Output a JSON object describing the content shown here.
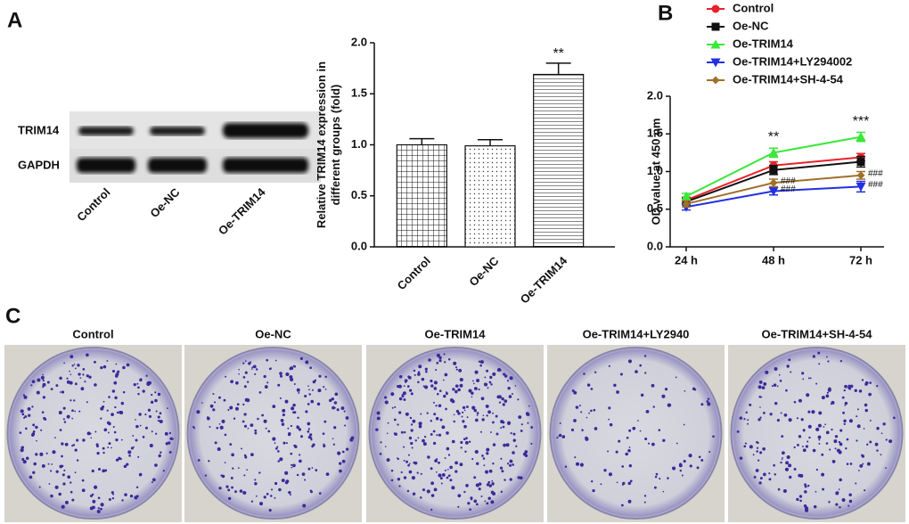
{
  "panel_labels": [
    "A",
    "B",
    "C"
  ],
  "blot": {
    "rows": [
      "TRIM14",
      "GAPDH"
    ],
    "lanes": [
      "Control",
      "Oe-NC",
      "Oe-TRIM14"
    ]
  },
  "colony": {
    "titles": [
      "Control",
      "Oe-NC",
      "Oe-TRIM14",
      "Oe-TRIM14+LY2940",
      "Oe-TRIM14+SH-4-54"
    ]
  },
  "chart_data": [
    {
      "type": "bar",
      "y_label_lines": [
        "Relative TRIM14 expression in",
        "different groups (fold)"
      ],
      "categories": [
        "Control",
        "Oe-NC",
        "Oe-TRIM14"
      ],
      "values": [
        1.0,
        0.99,
        1.69
      ],
      "errors": [
        0.06,
        0.06,
        0.11
      ],
      "patterns": [
        "grid",
        "dots",
        "hlines"
      ],
      "ylim": [
        0,
        2.0
      ],
      "yticks": [
        {
          "value": 0,
          "label": "0.0"
        },
        {
          "value": 0.5,
          "label": "0.5"
        },
        {
          "value": 1,
          "label": "1.0"
        },
        {
          "value": 1.5,
          "label": "1.5"
        },
        {
          "value": 2,
          "label": "2.0"
        }
      ],
      "annotations": [
        {
          "text": "**",
          "category": "Oe-TRIM14"
        }
      ]
    },
    {
      "type": "line",
      "y_label": "OD value at 450 nm",
      "categories": [
        "24 h",
        "48 h",
        "72 h"
      ],
      "series": [
        {
          "name": "Control",
          "color": "#e8222a",
          "marker": "circle",
          "values": [
            0.62,
            1.08,
            1.19
          ],
          "errors": [
            0.04,
            0.05,
            0.05
          ]
        },
        {
          "name": "Oe-NC",
          "color": "#111111",
          "marker": "square",
          "values": [
            0.6,
            1.02,
            1.13
          ],
          "errors": [
            0.04,
            0.06,
            0.07
          ]
        },
        {
          "name": "Oe-TRIM14",
          "color": "#3ae83a",
          "marker": "triangle-up",
          "values": [
            0.67,
            1.25,
            1.46
          ],
          "errors": [
            0.04,
            0.06,
            0.06
          ]
        },
        {
          "name": "Oe-TRIM14+LY294002",
          "color": "#2330e0",
          "marker": "triangle-down",
          "values": [
            0.53,
            0.74,
            0.8
          ],
          "errors": [
            0.04,
            0.05,
            0.07
          ]
        },
        {
          "name": "Oe-TRIM14+SH-4-54",
          "color": "#a0702a",
          "marker": "diamond",
          "values": [
            0.57,
            0.85,
            0.95
          ],
          "errors": [
            0.04,
            0.05,
            0.05
          ]
        }
      ],
      "ylim": [
        0,
        2.0
      ],
      "yticks": [
        {
          "value": 0,
          "label": "0.0"
        },
        {
          "value": 0.5,
          "label": "0.5"
        },
        {
          "value": 1,
          "label": "1.0"
        },
        {
          "value": 1.5,
          "label": "1.5"
        },
        {
          "value": 2,
          "label": "2.0"
        }
      ],
      "annotations": [
        {
          "text": "**",
          "x": "48 h",
          "series": "Oe-TRIM14",
          "position": "above"
        },
        {
          "text": "***",
          "x": "72 h",
          "series": "Oe-TRIM14",
          "position": "above"
        },
        {
          "text": "###",
          "x": "48 h",
          "series": "Oe-TRIM14+SH-4-54",
          "position": "right"
        },
        {
          "text": "###",
          "x": "48 h",
          "series": "Oe-TRIM14+LY294002",
          "position": "right"
        },
        {
          "text": "###",
          "x": "72 h",
          "series": "Oe-TRIM14+SH-4-54",
          "position": "right"
        },
        {
          "text": "###",
          "x": "72 h",
          "series": "Oe-TRIM14+LY294002",
          "position": "right"
        }
      ]
    }
  ]
}
